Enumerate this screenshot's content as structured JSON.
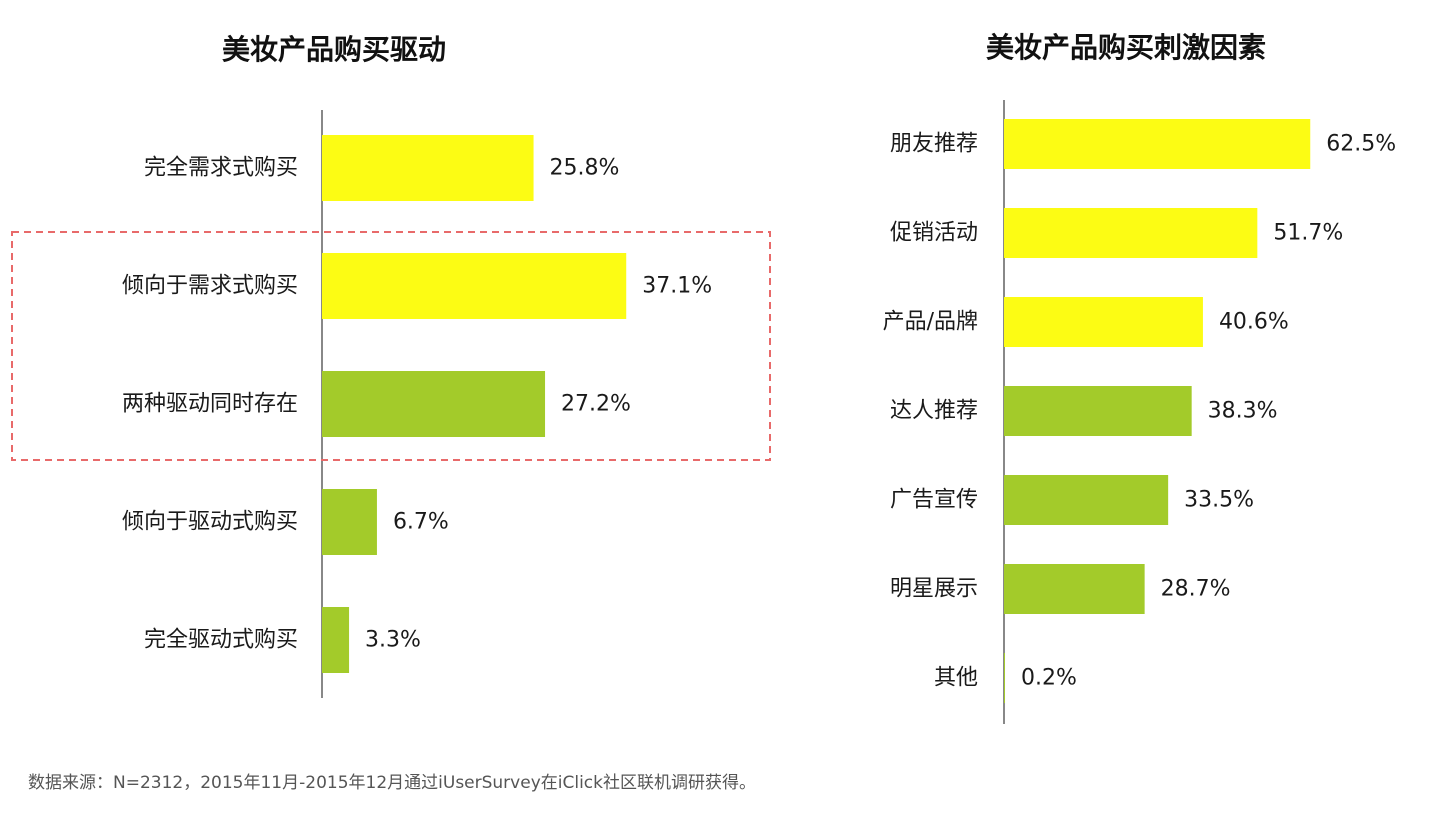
{
  "colors": {
    "primary": "#FCFC14",
    "secondary": "#A3CB2A",
    "highlight_box": "#E86A6A",
    "axis": "#888888"
  },
  "chart_data": [
    {
      "type": "bar",
      "orientation": "horizontal",
      "title": "美妆产品购买驱动",
      "categories": [
        "完全需求式购买",
        "倾向于需求式购买",
        "两种驱动同时存在",
        "倾向于驱动式购买",
        "完全驱动式购买"
      ],
      "values": [
        25.8,
        37.1,
        27.2,
        6.7,
        3.3
      ],
      "value_labels": [
        "25.8%",
        "37.1%",
        "27.2%",
        "6.7%",
        "3.3%"
      ],
      "bar_colors": [
        "#FCFC14",
        "#FCFC14",
        "#A3CB2A",
        "#A3CB2A",
        "#A3CB2A"
      ],
      "highlight_categories": [
        "倾向于需求式购买",
        "两种驱动同时存在"
      ],
      "unit": "%"
    },
    {
      "type": "bar",
      "orientation": "horizontal",
      "title": "美妆产品购买刺激因素",
      "categories": [
        "朋友推荐",
        "促销活动",
        "产品/品牌",
        "达人推荐",
        "广告宣传",
        "明星展示",
        "其他"
      ],
      "values": [
        62.5,
        51.7,
        40.6,
        38.3,
        33.5,
        28.7,
        0.2
      ],
      "value_labels": [
        "62.5%",
        "51.7%",
        "40.6%",
        "38.3%",
        "33.5%",
        "28.7%",
        "0.2%"
      ],
      "bar_colors": [
        "#FCFC14",
        "#FCFC14",
        "#FCFC14",
        "#A3CB2A",
        "#A3CB2A",
        "#A3CB2A",
        "#A3CB2A"
      ],
      "unit": "%"
    }
  ],
  "footer": {
    "source": "数据来源：N=2312，2015年11月-2015年12月通过iUserSurvey在iClick社区联机调研获得。"
  }
}
